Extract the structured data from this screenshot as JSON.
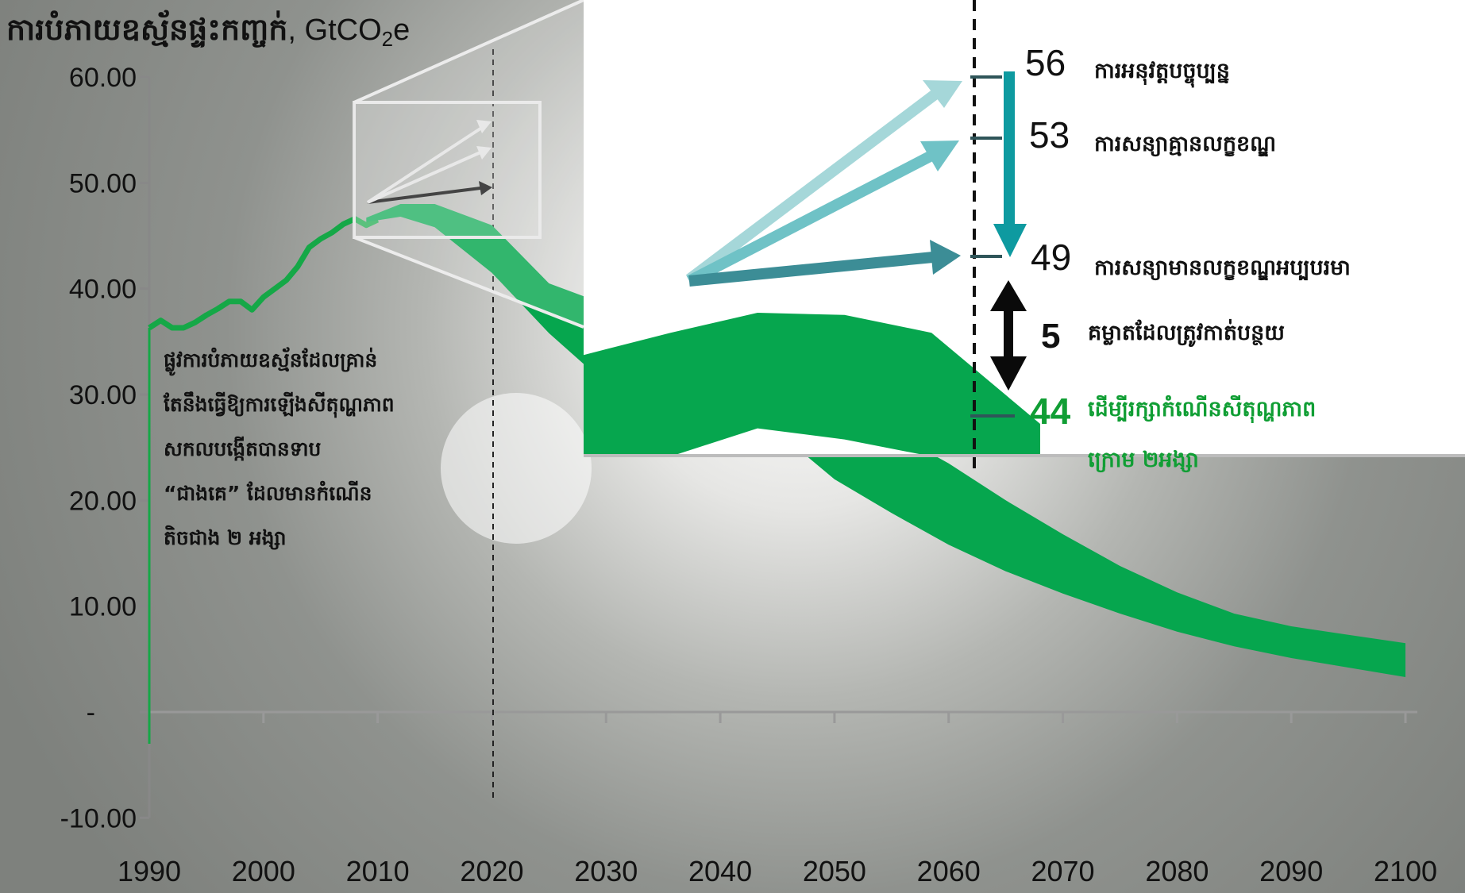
{
  "chart_data": {
    "type": "area",
    "title": "ការបំភាយឧស្ម័នផ្ទះកញ្ចក់",
    "unit_prefix": ", GtCO",
    "unit_sub": "2",
    "unit_suffix": "e",
    "ylim": [
      -10,
      60
    ],
    "xlim": [
      1990,
      2100
    ],
    "y_tick_labels": [
      "60.00",
      "50.00",
      "40.00",
      "30.00",
      "20.00",
      "10.00",
      "-",
      "-10.00"
    ],
    "y_tick_values": [
      60,
      50,
      40,
      30,
      20,
      10,
      0,
      -10
    ],
    "x_tick_labels": [
      "1990",
      "2000",
      "2010",
      "2020",
      "2030",
      "2040",
      "2050",
      "2060",
      "2070",
      "2080",
      "2090",
      "2100"
    ],
    "x_tick_values": [
      1990,
      2000,
      2010,
      2020,
      2030,
      2040,
      2050,
      2060,
      2070,
      2080,
      2090,
      2100
    ],
    "series": [
      {
        "type": "line",
        "color": "#15a847",
        "x": [
          1990,
          1991,
          1992,
          1993,
          1994,
          1995,
          1996,
          1997,
          1998,
          1999,
          2000,
          2001,
          2002,
          2003,
          2004,
          2005,
          2006,
          2007,
          2008,
          2009,
          2010
        ],
        "y": [
          36.3,
          37.0,
          36.3,
          36.3,
          36.8,
          37.5,
          38.1,
          38.8,
          38.8,
          38.0,
          39.2,
          40.0,
          40.8,
          42.1,
          43.9,
          44.7,
          45.3,
          46.1,
          46.6,
          46.0,
          46.5
        ]
      },
      {
        "type": "band",
        "color": "#06a64e",
        "x": [
          2009,
          2012,
          2015,
          2020,
          2025,
          2030,
          2035,
          2040,
          2045,
          2050,
          2055,
          2060,
          2065,
          2070,
          2075,
          2080,
          2085,
          2090,
          2095,
          2100
        ],
        "lower": [
          46.3,
          46.8,
          45.8,
          41.5,
          35.8,
          31.0,
          31.8,
          31.0,
          26.5,
          22.0,
          18.8,
          15.8,
          13.3,
          11.2,
          9.3,
          7.6,
          6.2,
          5.1,
          4.2,
          3.3
        ],
        "upper": [
          46.7,
          48.0,
          48.0,
          46.0,
          40.5,
          38.5,
          40.0,
          39.5,
          36.0,
          30.0,
          26.5,
          23.5,
          20.0,
          16.8,
          13.8,
          11.3,
          9.3,
          8.1,
          7.3,
          6.5
        ]
      }
    ],
    "annotations": [
      {
        "x": 2030,
        "y": 56
      },
      {
        "x": 2030,
        "y": 53
      },
      {
        "x": 2030,
        "y": 49
      },
      {
        "x": 2030,
        "y": 44
      }
    ]
  },
  "scenarios": {
    "current_policy": {
      "value": "56",
      "label": "ការអនុវត្តបច្ចុប្បន្ន"
    },
    "conditional": {
      "value": "53",
      "label": "ការសន្យាគ្មានលក្ខខណ្ឌ"
    },
    "pledges": {
      "value": "49",
      "label": "ការសន្យាមានលក្ខខណ្ឌអប្បបរមា"
    },
    "gap": {
      "value": "5",
      "label": "គម្លាតដែលត្រូវកាត់បន្ថយ"
    },
    "target": {
      "value": "44",
      "label_line1": "ដើម្បីរក្សាកំណើនសីតុណ្ហភាព",
      "label_line2": "ក្រោម ២អង្សា"
    }
  },
  "note": {
    "lines": [
      "ផ្លូវការបំភាយឧស្ម័នដែលគ្រាន់",
      "តែនឹងធ្វើឱ្យការឡើងសីតុណ្ហភាព",
      "សកលបង្កើតបានទាប",
      "“ជាងគេ” ដែលមានកំណើន",
      "តិចជាង ២ អង្សា"
    ]
  },
  "colors": {
    "historical": "#15a847",
    "band": "#06a64e",
    "arrow_current": "#a5d7d9",
    "arrow_conditional": "#6fc2c6",
    "arrow_pledges": "#3c8d96",
    "reduction_arrow": "#0e9aa0",
    "target_text": "#109e34"
  }
}
